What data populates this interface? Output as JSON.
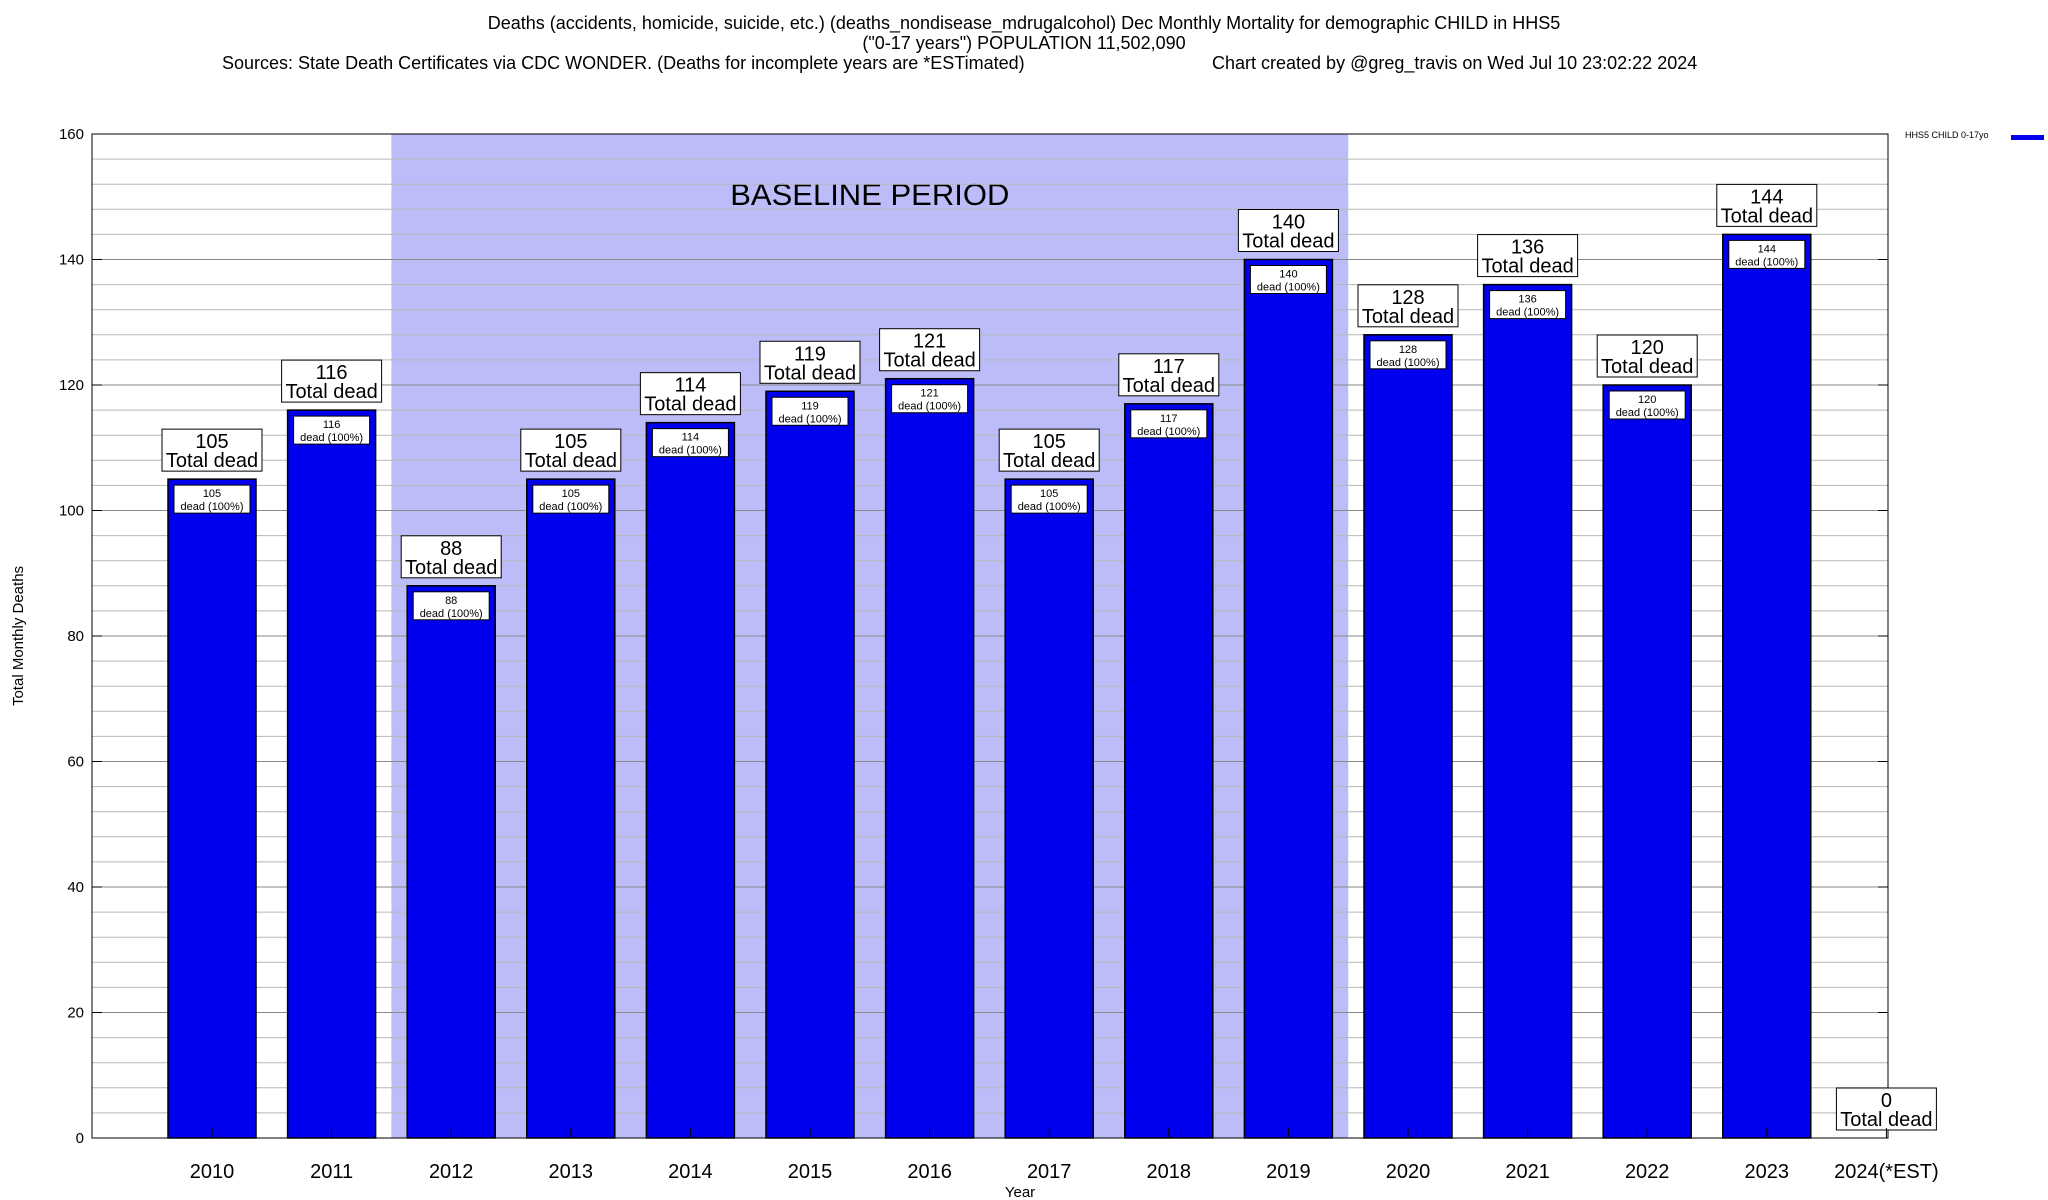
{
  "header": {
    "title_line1": "Deaths (accidents, homicide, suicide, etc.) (deaths_nondisease_mdrugalcohol) Dec Monthly Mortality for demographic CHILD in HHS5",
    "title_line2": "(\"0-17 years\") POPULATION 11,502,090",
    "sources": "Sources: State Death Certificates via CDC WONDER. (Deaths for incomplete years are *ESTimated)",
    "credit": "Chart created by @greg_travis on Wed Jul 10 23:02:22 2024"
  },
  "legend": {
    "label": "HHS5 CHILD 0-17yo",
    "color": "#0000ee"
  },
  "chart_data": {
    "type": "bar",
    "categories": [
      "2010",
      "2011",
      "2012",
      "2013",
      "2014",
      "2015",
      "2016",
      "2017",
      "2018",
      "2019",
      "2020",
      "2021",
      "2022",
      "2023",
      "2024(*EST)"
    ],
    "series": [
      {
        "name": "HHS5 CHILD 0-17yo",
        "values": [
          105,
          116,
          88,
          105,
          114,
          119,
          121,
          105,
          117,
          140,
          128,
          136,
          120,
          144,
          0
        ]
      }
    ],
    "total_label": "Total dead",
    "inner_label": "dead (100%)",
    "xlabel": "Year",
    "ylabel": "Total Monthly Deaths",
    "ylim": [
      0,
      160
    ],
    "yticks": [
      0,
      20,
      40,
      60,
      80,
      100,
      120,
      140,
      160
    ],
    "ygrid_minor_step": 4,
    "grid": true,
    "legend_position": "top-right",
    "bar_color": "#0000ee",
    "baseline_band": {
      "label": "BASELINE PERIOD",
      "from": "2012",
      "to": "2019",
      "color": "#bcbcf8"
    }
  }
}
